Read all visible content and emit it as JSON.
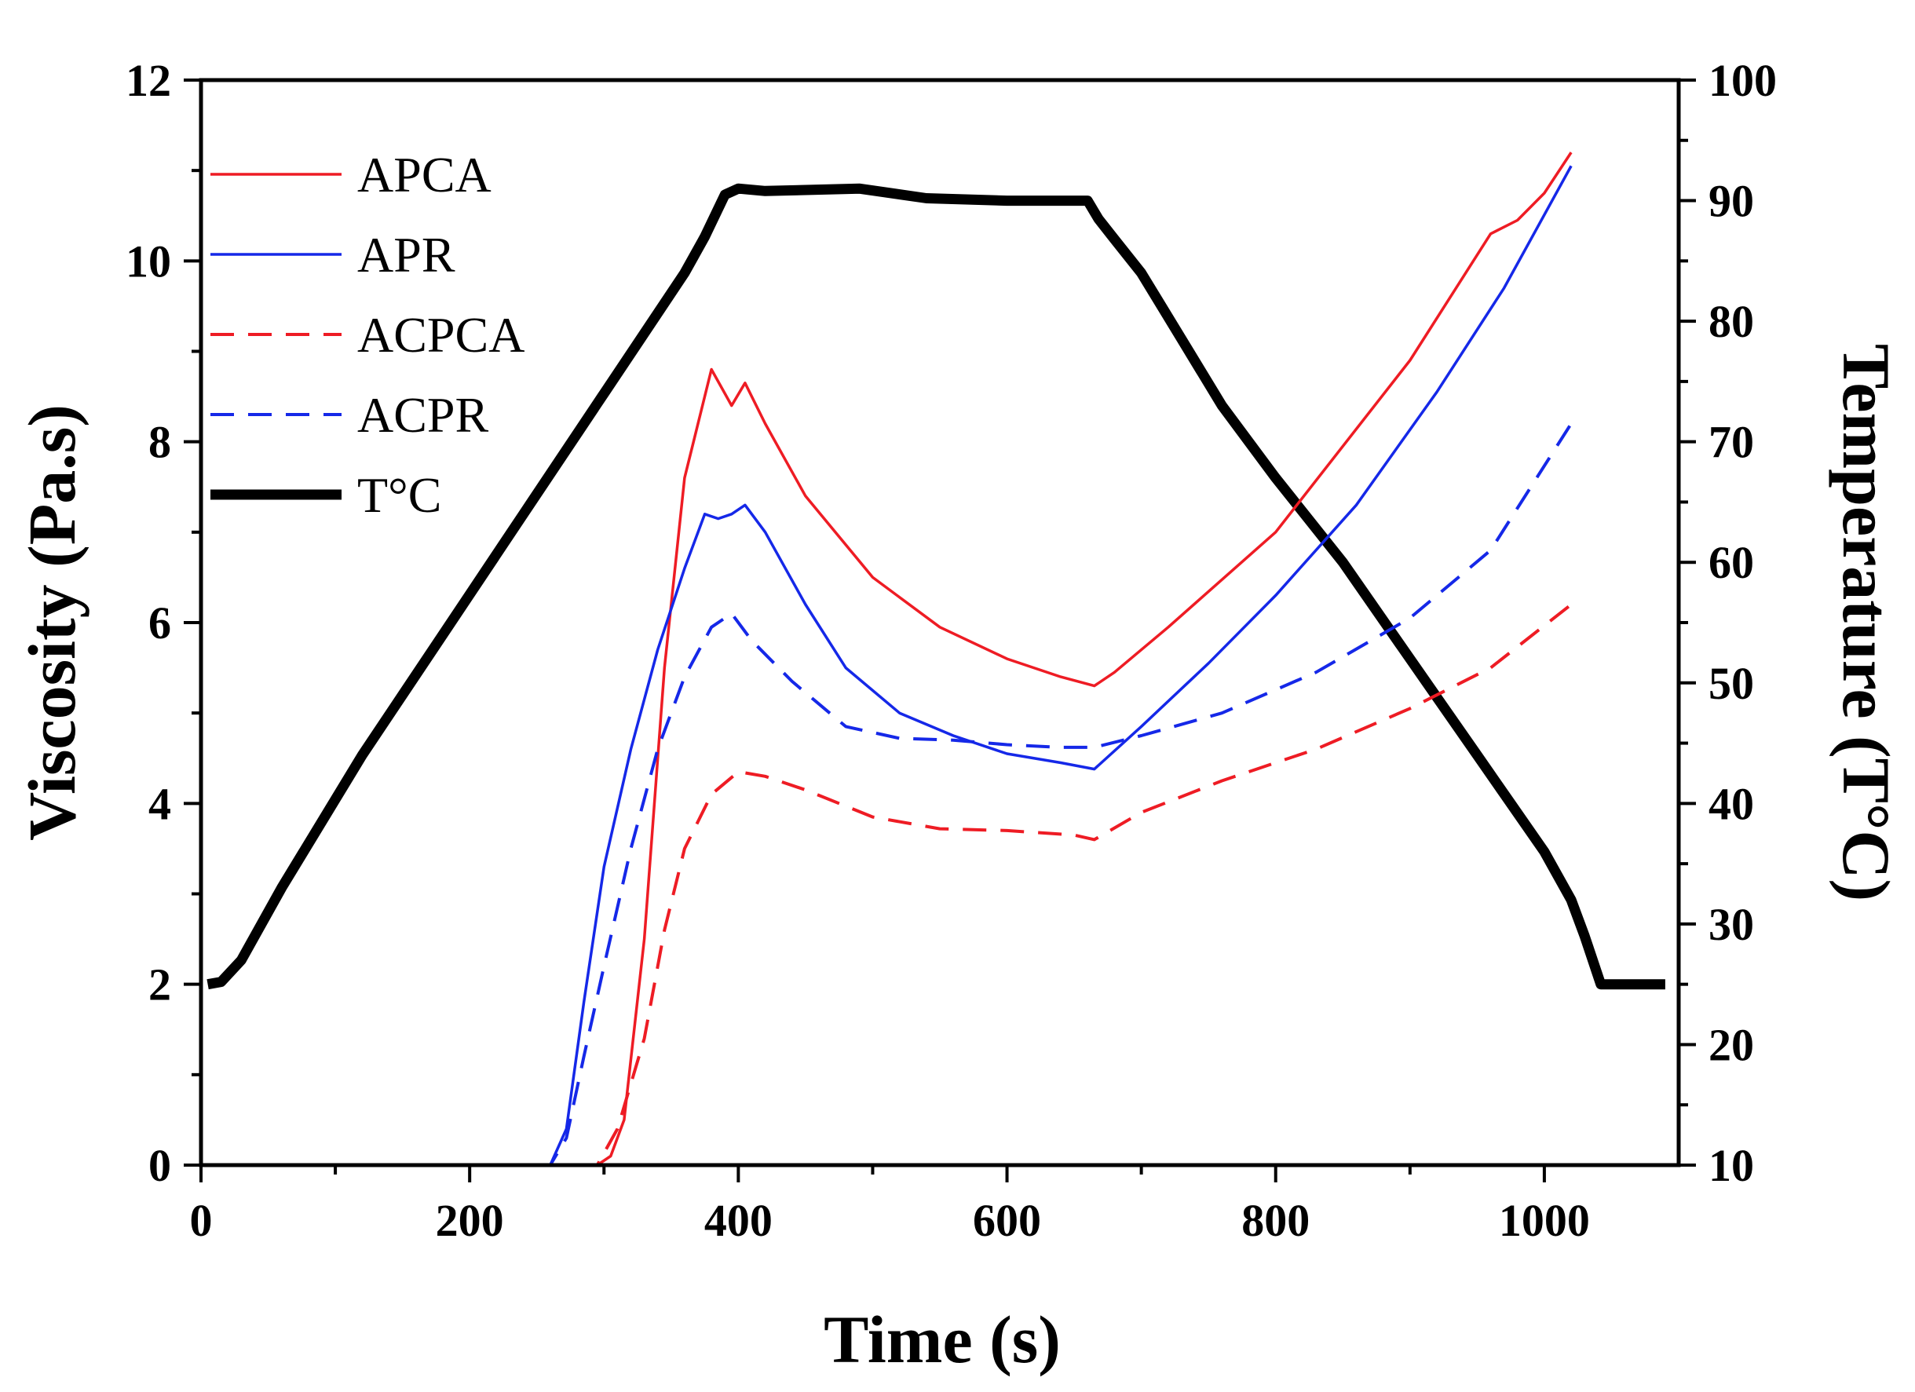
{
  "chart_data": {
    "type": "line",
    "title": "",
    "xlabel": "Time (s)",
    "ylabel": "Viscosity (Pa.s)",
    "y2label": "Temperature (T°C)",
    "xlim": [
      0,
      1100
    ],
    "ylim": [
      0,
      12
    ],
    "y2lim": [
      10,
      100
    ],
    "xticks": [
      "0",
      "200",
      "400",
      "600",
      "800",
      "1000"
    ],
    "yticks": [
      "0",
      "2",
      "4",
      "6",
      "8",
      "10",
      "12"
    ],
    "y2ticks": [
      "10",
      "20",
      "30",
      "40",
      "50",
      "60",
      "70",
      "80",
      "90",
      "100"
    ],
    "grid": false,
    "legend_position": "top-left",
    "series": [
      {
        "name": "APCA",
        "axis": "left",
        "color": "#ee1c24",
        "style": "solid",
        "points": [
          [
            0,
            0
          ],
          [
            200,
            0
          ],
          [
            295,
            0
          ],
          [
            305,
            0.1
          ],
          [
            315,
            0.5
          ],
          [
            330,
            2.5
          ],
          [
            345,
            5.5
          ],
          [
            360,
            7.6
          ],
          [
            380,
            8.8
          ],
          [
            395,
            8.4
          ],
          [
            405,
            8.65
          ],
          [
            420,
            8.2
          ],
          [
            450,
            7.4
          ],
          [
            500,
            6.5
          ],
          [
            550,
            5.95
          ],
          [
            600,
            5.6
          ],
          [
            640,
            5.4
          ],
          [
            665,
            5.3
          ],
          [
            680,
            5.45
          ],
          [
            720,
            5.95
          ],
          [
            800,
            7.0
          ],
          [
            900,
            8.9
          ],
          [
            960,
            10.3
          ],
          [
            980,
            10.45
          ],
          [
            1000,
            10.75
          ],
          [
            1020,
            11.2
          ]
        ]
      },
      {
        "name": "APR",
        "axis": "left",
        "color": "#1528e8",
        "style": "solid",
        "points": [
          [
            0,
            0
          ],
          [
            260,
            0
          ],
          [
            272,
            0.4
          ],
          [
            285,
            1.8
          ],
          [
            300,
            3.3
          ],
          [
            320,
            4.6
          ],
          [
            340,
            5.7
          ],
          [
            360,
            6.6
          ],
          [
            375,
            7.2
          ],
          [
            385,
            7.15
          ],
          [
            395,
            7.2
          ],
          [
            405,
            7.3
          ],
          [
            420,
            7.0
          ],
          [
            450,
            6.2
          ],
          [
            480,
            5.5
          ],
          [
            520,
            5.0
          ],
          [
            560,
            4.75
          ],
          [
            600,
            4.55
          ],
          [
            640,
            4.45
          ],
          [
            665,
            4.38
          ],
          [
            700,
            4.85
          ],
          [
            750,
            5.55
          ],
          [
            800,
            6.3
          ],
          [
            860,
            7.3
          ],
          [
            920,
            8.55
          ],
          [
            970,
            9.7
          ],
          [
            1020,
            11.05
          ]
        ]
      },
      {
        "name": "ACPCA",
        "axis": "left",
        "color": "#ee1c24",
        "style": "dashed",
        "points": [
          [
            0,
            0
          ],
          [
            200,
            0
          ],
          [
            295,
            0
          ],
          [
            310,
            0.4
          ],
          [
            330,
            1.4
          ],
          [
            345,
            2.6
          ],
          [
            360,
            3.5
          ],
          [
            380,
            4.1
          ],
          [
            400,
            4.35
          ],
          [
            420,
            4.3
          ],
          [
            450,
            4.15
          ],
          [
            500,
            3.85
          ],
          [
            550,
            3.72
          ],
          [
            600,
            3.7
          ],
          [
            650,
            3.65
          ],
          [
            665,
            3.6
          ],
          [
            700,
            3.9
          ],
          [
            760,
            4.25
          ],
          [
            830,
            4.6
          ],
          [
            900,
            5.05
          ],
          [
            960,
            5.5
          ],
          [
            1020,
            6.2
          ]
        ]
      },
      {
        "name": "ACPR",
        "axis": "left",
        "color": "#1528e8",
        "style": "dashed",
        "points": [
          [
            0,
            0
          ],
          [
            260,
            0
          ],
          [
            272,
            0.3
          ],
          [
            285,
            1.2
          ],
          [
            300,
            2.2
          ],
          [
            320,
            3.5
          ],
          [
            340,
            4.6
          ],
          [
            360,
            5.4
          ],
          [
            380,
            5.95
          ],
          [
            395,
            6.1
          ],
          [
            410,
            5.8
          ],
          [
            440,
            5.35
          ],
          [
            480,
            4.85
          ],
          [
            520,
            4.72
          ],
          [
            560,
            4.7
          ],
          [
            600,
            4.65
          ],
          [
            640,
            4.62
          ],
          [
            665,
            4.62
          ],
          [
            700,
            4.75
          ],
          [
            760,
            5.0
          ],
          [
            830,
            5.45
          ],
          [
            900,
            6.05
          ],
          [
            960,
            6.8
          ],
          [
            1020,
            8.2
          ]
        ]
      },
      {
        "name": "T°C",
        "axis": "right",
        "color": "#000000",
        "style": "solid-thick",
        "points": [
          [
            5,
            25
          ],
          [
            15,
            25.2
          ],
          [
            30,
            27
          ],
          [
            60,
            33
          ],
          [
            120,
            44
          ],
          [
            180,
            54
          ],
          [
            240,
            64
          ],
          [
            300,
            74
          ],
          [
            330,
            79
          ],
          [
            360,
            84
          ],
          [
            375,
            87
          ],
          [
            390,
            90.5
          ],
          [
            400,
            91
          ],
          [
            420,
            90.8
          ],
          [
            490,
            91
          ],
          [
            540,
            90.2
          ],
          [
            600,
            90
          ],
          [
            660,
            90
          ],
          [
            668,
            88.5
          ],
          [
            680,
            86.8
          ],
          [
            700,
            84
          ],
          [
            730,
            78.5
          ],
          [
            760,
            73
          ],
          [
            800,
            67
          ],
          [
            850,
            60
          ],
          [
            900,
            52
          ],
          [
            950,
            44
          ],
          [
            1000,
            36
          ],
          [
            1020,
            32
          ],
          [
            1030,
            29
          ],
          [
            1042,
            25
          ],
          [
            1090,
            25
          ]
        ]
      }
    ]
  }
}
